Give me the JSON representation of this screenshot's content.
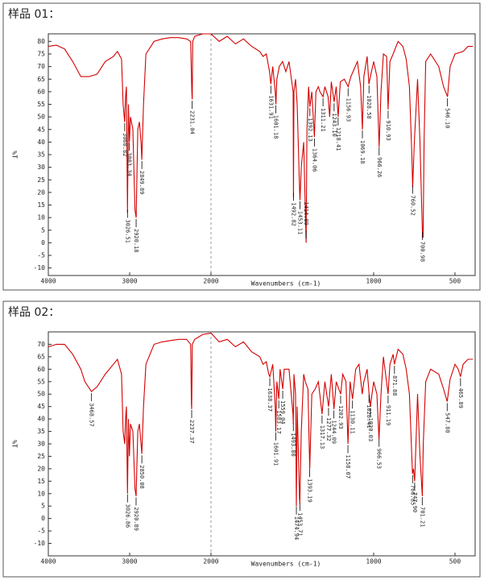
{
  "chart_data": [
    {
      "type": "line",
      "title": "样品 01：",
      "xlabel": "Wavenumbers (cm-1)",
      "ylabel": "%T",
      "color": "#d40000",
      "x_scale_break": 2000,
      "xlim": [
        4000,
        376
      ],
      "ylim": [
        -13,
        83
      ],
      "xticks": [
        4000,
        3000,
        2000,
        1000,
        500
      ],
      "yticks": [
        -10,
        -5,
        0,
        5,
        10,
        15,
        20,
        25,
        30,
        35,
        40,
        45,
        50,
        55,
        60,
        65,
        70,
        75,
        80
      ],
      "x": [
        4000,
        3900,
        3800,
        3700,
        3600,
        3500,
        3400,
        3300,
        3200,
        3150,
        3100,
        3080,
        3061,
        3050,
        3040,
        3027,
        3015,
        3003,
        2990,
        2960,
        2935,
        2920,
        2900,
        2880,
        2860,
        2850,
        2830,
        2800,
        2700,
        2600,
        2500,
        2400,
        2300,
        2250,
        2235,
        2231,
        2225,
        2200,
        2100,
        2000,
        1950,
        1900,
        1850,
        1800,
        1750,
        1700,
        1680,
        1660,
        1640,
        1632,
        1620,
        1605,
        1601,
        1595,
        1580,
        1560,
        1540,
        1520,
        1495,
        1493,
        1490,
        1480,
        1470,
        1455,
        1453,
        1445,
        1430,
        1415,
        1410,
        1400,
        1392,
        1380,
        1364,
        1355,
        1340,
        1330,
        1311,
        1300,
        1280,
        1270,
        1260,
        1243,
        1230,
        1218,
        1205,
        1180,
        1157,
        1140,
        1100,
        1080,
        1069,
        1060,
        1040,
        1029,
        1020,
        1000,
        980,
        966,
        955,
        940,
        920,
        911,
        900,
        880,
        850,
        820,
        800,
        780,
        765,
        760,
        750,
        730,
        715,
        701,
        696,
        690,
        680,
        650,
        600,
        570,
        546,
        530,
        500,
        450,
        420,
        390
      ],
      "values": [
        78,
        78.5,
        77,
        72,
        66,
        66,
        67,
        72,
        74,
        76,
        73,
        55,
        48,
        58,
        62,
        12,
        55,
        40,
        50,
        45,
        13,
        10,
        45,
        48,
        40,
        33,
        55,
        75,
        80,
        81,
        81.5,
        81.5,
        81,
        80,
        60,
        57,
        80,
        82,
        83,
        83,
        80,
        82,
        79,
        81,
        78,
        76,
        74,
        75,
        68,
        63,
        70,
        60,
        55,
        65,
        70,
        72,
        68,
        72,
        60,
        18,
        60,
        65,
        55,
        20,
        17,
        30,
        40,
        0,
        45,
        62,
        54,
        60,
        42,
        60,
        62,
        60,
        58,
        62,
        58,
        50,
        64,
        56,
        62,
        50,
        64,
        65,
        62,
        66,
        72,
        62,
        45,
        66,
        74,
        63,
        66,
        72,
        66,
        38,
        60,
        75,
        74,
        53,
        72,
        75,
        80,
        78,
        73,
        62,
        35,
        22,
        40,
        65,
        40,
        5,
        2,
        40,
        72,
        75,
        70,
        62,
        58,
        70,
        75,
        76,
        78,
        78
      ],
      "peaks": [
        {
          "value": 3060.82,
          "label": "3060.82"
        },
        {
          "value": 3026.51,
          "label": "3026.51"
        },
        {
          "value": 3003.34,
          "label": "3003.34"
        },
        {
          "value": 2920.18,
          "label": "2920.18"
        },
        {
          "value": 2849.89,
          "label": "2849.89"
        },
        {
          "value": 2231.04,
          "label": "2231.04"
        },
        {
          "value": 1631.91,
          "label": "1631.91"
        },
        {
          "value": 1601.18,
          "label": "1601.18"
        },
        {
          "value": 1492.82,
          "label": "1492.82"
        },
        {
          "value": 1453.11,
          "label": "1453.11"
        },
        {
          "value": 1414.89,
          "label": "1414.89"
        },
        {
          "value": 1392.13,
          "label": "1392.13"
        },
        {
          "value": 1364.06,
          "label": "1364.06"
        },
        {
          "value": 1311.21,
          "label": "1311.21"
        },
        {
          "value": 1243.1,
          "label": "1243.10"
        },
        {
          "value": 1218.41,
          "label": "1218.41"
        },
        {
          "value": 1156.93,
          "label": "1156.93"
        },
        {
          "value": 1069.18,
          "label": "1069.18"
        },
        {
          "value": 1028.58,
          "label": "1028.58"
        },
        {
          "value": 966.26,
          "label": "966.26"
        },
        {
          "value": 910.93,
          "label": "910.93"
        },
        {
          "value": 760.52,
          "label": "760.52"
        },
        {
          "value": 700.98,
          "label": "700.98"
        },
        {
          "value": 546.1,
          "label": "546.10"
        }
      ]
    },
    {
      "type": "line",
      "title": "样品 02：",
      "xlabel": "Wavenumbers (cm-1)",
      "ylabel": "%T",
      "color": "#d40000",
      "x_scale_break": 2000,
      "xlim": [
        4000,
        376
      ],
      "ylim": [
        -15,
        75
      ],
      "xticks": [
        4000,
        3000,
        2000,
        1000,
        500
      ],
      "yticks": [
        -10,
        -5,
        0,
        5,
        10,
        15,
        20,
        25,
        30,
        35,
        40,
        45,
        50,
        55,
        60,
        65,
        70
      ],
      "x": [
        4000,
        3900,
        3800,
        3700,
        3600,
        3550,
        3469,
        3400,
        3300,
        3200,
        3150,
        3100,
        3080,
        3060,
        3050,
        3040,
        3027,
        3015,
        3003,
        2990,
        2960,
        2935,
        2921,
        2900,
        2880,
        2860,
        2850,
        2830,
        2800,
        2700,
        2600,
        2500,
        2400,
        2300,
        2250,
        2240,
        2237,
        2230,
        2200,
        2100,
        2000,
        1950,
        1900,
        1850,
        1800,
        1750,
        1700,
        1680,
        1660,
        1645,
        1638,
        1620,
        1605,
        1602,
        1595,
        1583,
        1575,
        1559,
        1550,
        1520,
        1496,
        1494,
        1490,
        1480,
        1475,
        1470,
        1456,
        1454,
        1445,
        1430,
        1420,
        1404,
        1393,
        1380,
        1360,
        1340,
        1317,
        1300,
        1277,
        1260,
        1244,
        1230,
        1203,
        1190,
        1170,
        1158,
        1145,
        1130,
        1110,
        1090,
        1070,
        1060,
        1040,
        1028,
        1020,
        1000,
        980,
        967,
        955,
        940,
        911,
        900,
        880,
        872,
        850,
        820,
        800,
        780,
        761,
        755,
        748,
        740,
        730,
        715,
        701,
        695,
        680,
        650,
        600,
        570,
        548,
        530,
        500,
        480,
        466,
        450,
        420,
        390
      ],
      "values": [
        69,
        70,
        70,
        66,
        60,
        55,
        51,
        53,
        58,
        62,
        64,
        58,
        35,
        30,
        40,
        45,
        10,
        40,
        25,
        38,
        35,
        12,
        9,
        35,
        38,
        30,
        26,
        45,
        62,
        70,
        71,
        71.5,
        72,
        72,
        70,
        46,
        44,
        70,
        72,
        74,
        74.5,
        71,
        72,
        69,
        71,
        67,
        65,
        62,
        63,
        58,
        57,
        62,
        45,
        35,
        55,
        48,
        60,
        52,
        60,
        60,
        42,
        38,
        58,
        50,
        5,
        45,
        8,
        6,
        35,
        58,
        55,
        52,
        20,
        50,
        52,
        55,
        42,
        55,
        45,
        58,
        44,
        55,
        50,
        58,
        55,
        30,
        55,
        48,
        60,
        62,
        50,
        55,
        60,
        50,
        45,
        55,
        50,
        32,
        50,
        65,
        50,
        62,
        66,
        62,
        68,
        66,
        60,
        50,
        18,
        20,
        15,
        30,
        50,
        25,
        9,
        30,
        55,
        60,
        58,
        52,
        47,
        56,
        62,
        60,
        57,
        62,
        64,
        64
      ],
      "peaks": [
        {
          "value": 3468.57,
          "label": "3468.57"
        },
        {
          "value": 3026.86,
          "label": "3026.86"
        },
        {
          "value": 2920.89,
          "label": "2920.89"
        },
        {
          "value": 2850.08,
          "label": "2850.08"
        },
        {
          "value": 2237.37,
          "label": "2237.37"
        },
        {
          "value": 1638.37,
          "label": "1638.37"
        },
        {
          "value": 1601.91,
          "label": "1601.91"
        },
        {
          "value": 1583.17,
          "label": "1583.17"
        },
        {
          "value": 1559.04,
          "label": "1559.04"
        },
        {
          "value": 1493.8,
          "label": "1493.80"
        },
        {
          "value": 1474.94,
          "label": "1474.94"
        },
        {
          "value": 1453.71,
          "label": "1453.71"
        },
        {
          "value": 1393.19,
          "label": "1393.19"
        },
        {
          "value": 1317.13,
          "label": "1317.13"
        },
        {
          "value": 1277.32,
          "label": "1277.32"
        },
        {
          "value": 1244.09,
          "label": "1244.09"
        },
        {
          "value": 1202.93,
          "label": "1202.93"
        },
        {
          "value": 1158.07,
          "label": "1158.07"
        },
        {
          "value": 1130.11,
          "label": "1130.11"
        },
        {
          "value": 1028.41,
          "label": "1028.41"
        },
        {
          "value": 1020.03,
          "label": "1020.03"
        },
        {
          "value": 966.53,
          "label": "966.53"
        },
        {
          "value": 911.19,
          "label": "911.19"
        },
        {
          "value": 871.88,
          "label": "871.88"
        },
        {
          "value": 760.85,
          "label": "760.85"
        },
        {
          "value": 747.9,
          "label": "747.90"
        },
        {
          "value": 701.21,
          "label": "701.21"
        },
        {
          "value": 547.88,
          "label": "547.88"
        },
        {
          "value": 465.89,
          "label": "465.89"
        }
      ]
    }
  ]
}
